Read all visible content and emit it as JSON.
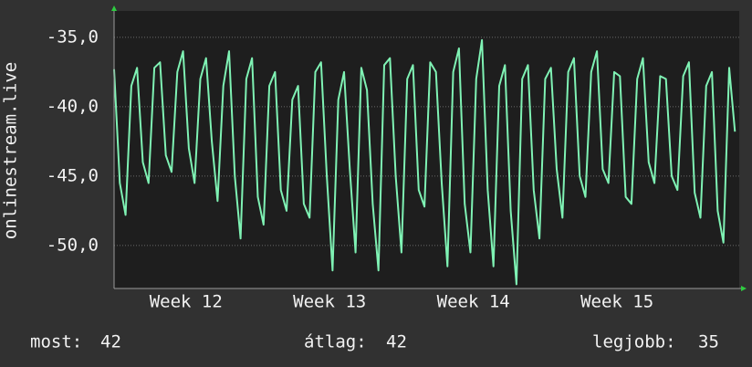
{
  "chart_data": {
    "type": "line",
    "y_label": "onlinestream.live",
    "x": [
      11.5,
      11.54,
      11.58,
      11.62,
      11.66,
      11.7,
      11.74,
      11.78,
      11.82,
      11.86,
      11.9,
      11.94,
      11.98,
      12.02,
      12.06,
      12.1,
      12.14,
      12.18,
      12.22,
      12.26,
      12.3,
      12.34,
      12.38,
      12.42,
      12.46,
      12.5,
      12.54,
      12.58,
      12.62,
      12.66,
      12.7,
      12.74,
      12.78,
      12.82,
      12.86,
      12.9,
      12.94,
      12.98,
      13.02,
      13.06,
      13.1,
      13.14,
      13.18,
      13.22,
      13.26,
      13.3,
      13.34,
      13.38,
      13.42,
      13.46,
      13.5,
      13.54,
      13.58,
      13.62,
      13.66,
      13.7,
      13.74,
      13.78,
      13.82,
      13.86,
      13.9,
      13.94,
      13.98,
      14.02,
      14.06,
      14.1,
      14.14,
      14.18,
      14.22,
      14.26,
      14.3,
      14.34,
      14.38,
      14.42,
      14.46,
      14.5,
      14.54,
      14.58,
      14.62,
      14.66,
      14.7,
      14.74,
      14.78,
      14.82,
      14.86,
      14.9,
      14.94,
      14.98,
      15.02,
      15.06,
      15.1,
      15.14,
      15.18,
      15.22,
      15.26,
      15.3,
      15.34,
      15.38,
      15.42,
      15.46,
      15.5,
      15.54,
      15.58,
      15.62,
      15.66,
      15.7,
      15.74,
      15.78,
      15.82
    ],
    "series": [
      {
        "color": "#7ff2b4",
        "values": [
          -37.3,
          -45.5,
          -47.8,
          -38.5,
          -37.2,
          -44,
          -45.5,
          -37.2,
          -36.8,
          -43.5,
          -44.7,
          -37.5,
          -36,
          -43,
          -45.5,
          -38,
          -36.5,
          -42.5,
          -46.8,
          -38.5,
          -36,
          -45,
          -49.5,
          -38,
          -36.5,
          -46.5,
          -48.5,
          -38.5,
          -37.5,
          -46,
          -47.5,
          -39.5,
          -38.5,
          -47,
          -48,
          -37.5,
          -36.8,
          -45,
          -51.8,
          -39.5,
          -37.5,
          -44.5,
          -50.5,
          -37.2,
          -38.8,
          -47,
          -51.8,
          -37,
          -36.5,
          -45,
          -50.5,
          -38,
          -37,
          -46,
          -47.2,
          -36.8,
          -37.5,
          -45.5,
          -51.5,
          -37.5,
          -35.8,
          -47,
          -50.5,
          -38,
          -35.2,
          -46,
          -51.5,
          -38.5,
          -37,
          -47.5,
          -52.8,
          -38,
          -37,
          -46,
          -49.5,
          -38,
          -37.2,
          -44.5,
          -48,
          -37.5,
          -36.5,
          -45,
          -46.5,
          -37.5,
          -36,
          -44.5,
          -45.5,
          -37.5,
          -37.8,
          -46.5,
          -47,
          -38,
          -36.5,
          -44,
          -45.5,
          -37.8,
          -38,
          -45,
          -46,
          -37.8,
          -36.8,
          -46.2,
          -48,
          -38.5,
          -37.5,
          -47.5,
          -49.8,
          -37.2,
          -41.8
        ]
      }
    ],
    "xlim": [
      11.5,
      15.85
    ],
    "xticks": [
      {
        "value": 12,
        "label": "Week 12"
      },
      {
        "value": 13,
        "label": "Week 13"
      },
      {
        "value": 14,
        "label": "Week 14"
      },
      {
        "value": 15,
        "label": "Week 15"
      }
    ],
    "ylim": [
      -53.1,
      -33.1
    ],
    "yticks": [
      {
        "value": -35,
        "label": "-35,0"
      },
      {
        "value": -40,
        "label": "-40,0"
      },
      {
        "value": -45,
        "label": "-45,0"
      },
      {
        "value": -50,
        "label": "-50,0"
      }
    ],
    "grid": true,
    "stats": [
      {
        "label": "most:",
        "value": 42
      },
      {
        "label": "átlag:",
        "value": 42
      },
      {
        "label": "legjobb:",
        "value": 35
      }
    ]
  }
}
